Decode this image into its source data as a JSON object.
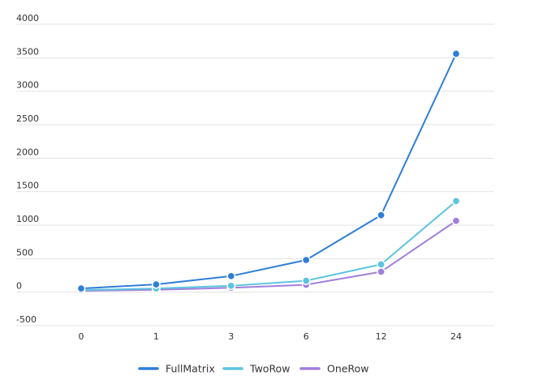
{
  "chart_data": {
    "type": "line",
    "categories": [
      "0",
      "1",
      "3",
      "6",
      "12",
      "24"
    ],
    "series": [
      {
        "name": "FullMatrix",
        "color": "#2f7ed8",
        "values": [
          55,
          115,
          240,
          480,
          1150,
          3560
        ]
      },
      {
        "name": "TwoRow",
        "color": "#5bc4e0",
        "values": [
          30,
          55,
          95,
          170,
          415,
          1360
        ]
      },
      {
        "name": "OneRow",
        "color": "#a07fdb",
        "values": [
          20,
          35,
          65,
          110,
          305,
          1065
        ]
      }
    ],
    "y_ticks": [
      "-500",
      "0",
      "500",
      "1000",
      "1500",
      "2000",
      "2500",
      "3000",
      "3500",
      "4000"
    ],
    "ylim": [
      -500,
      4000
    ],
    "title": "",
    "xlabel": "",
    "ylabel": "",
    "grid": true,
    "legend_position": "bottom"
  }
}
